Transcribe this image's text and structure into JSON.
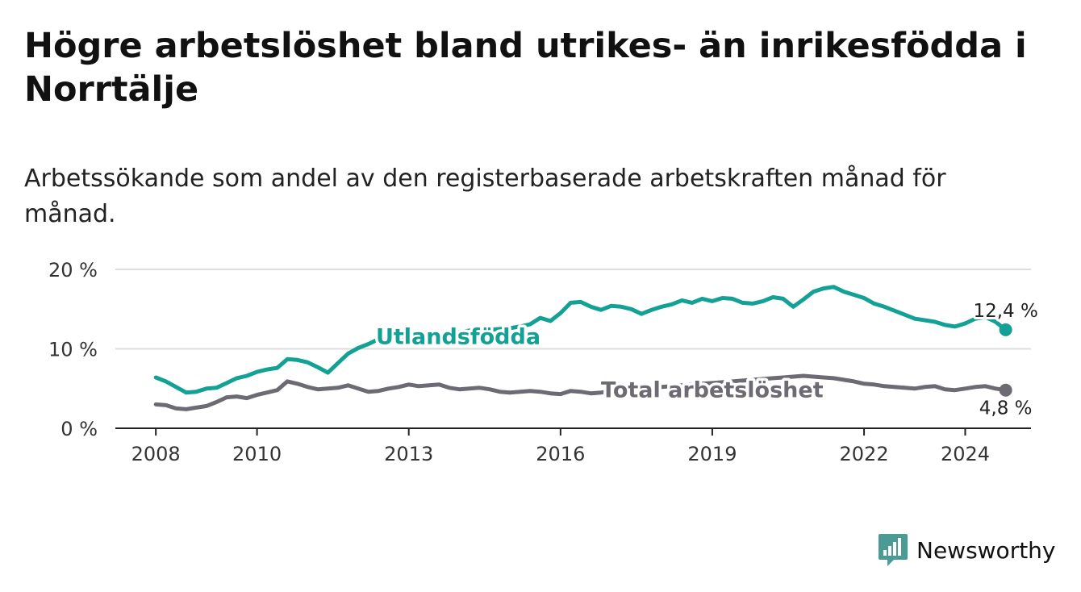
{
  "title": "Högre arbetslöshet bland utrikes- än inrikesfödda i Norrtälje",
  "subtitle": "Arbetssökande som andel av den registerbaserade arbetskraften månad för månad.",
  "brand": {
    "name": "Newsworthy",
    "icon": "bar-chart-logo-icon",
    "color": "#4a9a96"
  },
  "chart_data": {
    "type": "line",
    "x_unit": "year",
    "xlim": [
      2007.2,
      2025.3
    ],
    "ylim": [
      0,
      20
    ],
    "y_ticks": [
      0,
      10,
      20
    ],
    "y_tick_labels": [
      "0 %",
      "10 %",
      "20 %"
    ],
    "x_ticks": [
      2008,
      2010,
      2013,
      2016,
      2019,
      2022,
      2024
    ],
    "x_tick_labels": [
      "2008",
      "2010",
      "2013",
      "2016",
      "2019",
      "2022",
      "2024"
    ],
    "grid": true,
    "series": [
      {
        "name": "Utlandsfödda",
        "color": "#14a195",
        "label_at": [
          2012.35,
          11.5
        ],
        "end_label": "12,4 %",
        "points": [
          [
            2008.0,
            6.4
          ],
          [
            2008.2,
            5.9
          ],
          [
            2008.4,
            5.2
          ],
          [
            2008.6,
            4.5
          ],
          [
            2008.8,
            4.6
          ],
          [
            2009.0,
            5.0
          ],
          [
            2009.2,
            5.1
          ],
          [
            2009.4,
            5.7
          ],
          [
            2009.6,
            6.3
          ],
          [
            2009.8,
            6.6
          ],
          [
            2010.0,
            7.1
          ],
          [
            2010.2,
            7.4
          ],
          [
            2010.4,
            7.6
          ],
          [
            2010.6,
            8.7
          ],
          [
            2010.8,
            8.6
          ],
          [
            2011.0,
            8.3
          ],
          [
            2011.2,
            7.7
          ],
          [
            2011.4,
            7.0
          ],
          [
            2011.6,
            8.2
          ],
          [
            2011.8,
            9.4
          ],
          [
            2012.0,
            10.1
          ],
          [
            2012.2,
            10.6
          ],
          [
            2012.4,
            11.2
          ],
          [
            2012.6,
            12.1
          ],
          [
            2012.8,
            11.6
          ],
          [
            2013.0,
            11.2
          ],
          [
            2013.2,
            11.3
          ],
          [
            2013.4,
            11.4
          ],
          [
            2013.6,
            11.7
          ],
          [
            2013.8,
            11.9
          ],
          [
            2014.0,
            12.1
          ],
          [
            2014.2,
            12.3
          ],
          [
            2014.4,
            12.6
          ],
          [
            2014.6,
            12.4
          ],
          [
            2014.8,
            12.5
          ],
          [
            2015.0,
            12.6
          ],
          [
            2015.2,
            12.8
          ],
          [
            2015.4,
            13.1
          ],
          [
            2015.6,
            13.9
          ],
          [
            2015.8,
            13.5
          ],
          [
            2016.0,
            14.5
          ],
          [
            2016.2,
            15.8
          ],
          [
            2016.4,
            15.9
          ],
          [
            2016.6,
            15.3
          ],
          [
            2016.8,
            14.9
          ],
          [
            2017.0,
            15.4
          ],
          [
            2017.2,
            15.3
          ],
          [
            2017.4,
            15.0
          ],
          [
            2017.6,
            14.4
          ],
          [
            2017.8,
            14.9
          ],
          [
            2018.0,
            15.3
          ],
          [
            2018.2,
            15.6
          ],
          [
            2018.4,
            16.1
          ],
          [
            2018.6,
            15.8
          ],
          [
            2018.8,
            16.3
          ],
          [
            2019.0,
            16.0
          ],
          [
            2019.2,
            16.4
          ],
          [
            2019.4,
            16.3
          ],
          [
            2019.6,
            15.8
          ],
          [
            2019.8,
            15.7
          ],
          [
            2020.0,
            16.0
          ],
          [
            2020.2,
            16.5
          ],
          [
            2020.4,
            16.3
          ],
          [
            2020.6,
            15.3
          ],
          [
            2020.8,
            16.2
          ],
          [
            2021.0,
            17.2
          ],
          [
            2021.2,
            17.6
          ],
          [
            2021.4,
            17.8
          ],
          [
            2021.6,
            17.2
          ],
          [
            2021.8,
            16.8
          ],
          [
            2022.0,
            16.4
          ],
          [
            2022.2,
            15.7
          ],
          [
            2022.4,
            15.3
          ],
          [
            2022.6,
            14.8
          ],
          [
            2022.8,
            14.3
          ],
          [
            2023.0,
            13.8
          ],
          [
            2023.2,
            13.6
          ],
          [
            2023.4,
            13.4
          ],
          [
            2023.6,
            13.0
          ],
          [
            2023.8,
            12.8
          ],
          [
            2024.0,
            13.2
          ],
          [
            2024.2,
            13.8
          ],
          [
            2024.4,
            14.0
          ],
          [
            2024.6,
            13.4
          ],
          [
            2024.8,
            12.4
          ]
        ]
      },
      {
        "name": "Total arbetslöshet",
        "color": "#6e6a73",
        "label_at": [
          2016.8,
          4.8
        ],
        "end_label": "4,8 %",
        "points": [
          [
            2008.0,
            3.0
          ],
          [
            2008.2,
            2.9
          ],
          [
            2008.4,
            2.5
          ],
          [
            2008.6,
            2.4
          ],
          [
            2008.8,
            2.6
          ],
          [
            2009.0,
            2.8
          ],
          [
            2009.2,
            3.3
          ],
          [
            2009.4,
            3.9
          ],
          [
            2009.6,
            4.0
          ],
          [
            2009.8,
            3.8
          ],
          [
            2010.0,
            4.2
          ],
          [
            2010.2,
            4.5
          ],
          [
            2010.4,
            4.8
          ],
          [
            2010.6,
            5.9
          ],
          [
            2010.8,
            5.6
          ],
          [
            2011.0,
            5.2
          ],
          [
            2011.2,
            4.9
          ],
          [
            2011.4,
            5.0
          ],
          [
            2011.6,
            5.1
          ],
          [
            2011.8,
            5.4
          ],
          [
            2012.0,
            5.0
          ],
          [
            2012.2,
            4.6
          ],
          [
            2012.4,
            4.7
          ],
          [
            2012.6,
            5.0
          ],
          [
            2012.8,
            5.2
          ],
          [
            2013.0,
            5.5
          ],
          [
            2013.2,
            5.3
          ],
          [
            2013.4,
            5.4
          ],
          [
            2013.6,
            5.5
          ],
          [
            2013.8,
            5.1
          ],
          [
            2014.0,
            4.9
          ],
          [
            2014.2,
            5.0
          ],
          [
            2014.4,
            5.1
          ],
          [
            2014.6,
            4.9
          ],
          [
            2014.8,
            4.6
          ],
          [
            2015.0,
            4.5
          ],
          [
            2015.2,
            4.6
          ],
          [
            2015.4,
            4.7
          ],
          [
            2015.6,
            4.6
          ],
          [
            2015.8,
            4.4
          ],
          [
            2016.0,
            4.3
          ],
          [
            2016.2,
            4.7
          ],
          [
            2016.4,
            4.6
          ],
          [
            2016.6,
            4.4
          ],
          [
            2016.8,
            4.5
          ],
          [
            2017.0,
            4.7
          ],
          [
            2017.2,
            4.8
          ],
          [
            2017.4,
            4.9
          ],
          [
            2017.6,
            5.0
          ],
          [
            2017.8,
            5.1
          ],
          [
            2018.0,
            5.2
          ],
          [
            2018.2,
            5.3
          ],
          [
            2018.4,
            5.4
          ],
          [
            2018.6,
            5.5
          ],
          [
            2018.8,
            5.6
          ],
          [
            2019.0,
            5.7
          ],
          [
            2019.2,
            5.8
          ],
          [
            2019.4,
            5.9
          ],
          [
            2019.6,
            6.0
          ],
          [
            2019.8,
            6.1
          ],
          [
            2020.0,
            6.2
          ],
          [
            2020.2,
            6.3
          ],
          [
            2020.4,
            6.4
          ],
          [
            2020.6,
            6.5
          ],
          [
            2020.8,
            6.6
          ],
          [
            2021.0,
            6.5
          ],
          [
            2021.2,
            6.4
          ],
          [
            2021.4,
            6.3
          ],
          [
            2021.6,
            6.1
          ],
          [
            2021.8,
            5.9
          ],
          [
            2022.0,
            5.6
          ],
          [
            2022.2,
            5.5
          ],
          [
            2022.4,
            5.3
          ],
          [
            2022.6,
            5.2
          ],
          [
            2022.8,
            5.1
          ],
          [
            2023.0,
            5.0
          ],
          [
            2023.2,
            5.2
          ],
          [
            2023.4,
            5.3
          ],
          [
            2023.6,
            4.9
          ],
          [
            2023.8,
            4.8
          ],
          [
            2024.0,
            5.0
          ],
          [
            2024.2,
            5.2
          ],
          [
            2024.4,
            5.3
          ],
          [
            2024.6,
            5.0
          ],
          [
            2024.8,
            4.8
          ]
        ]
      }
    ]
  }
}
